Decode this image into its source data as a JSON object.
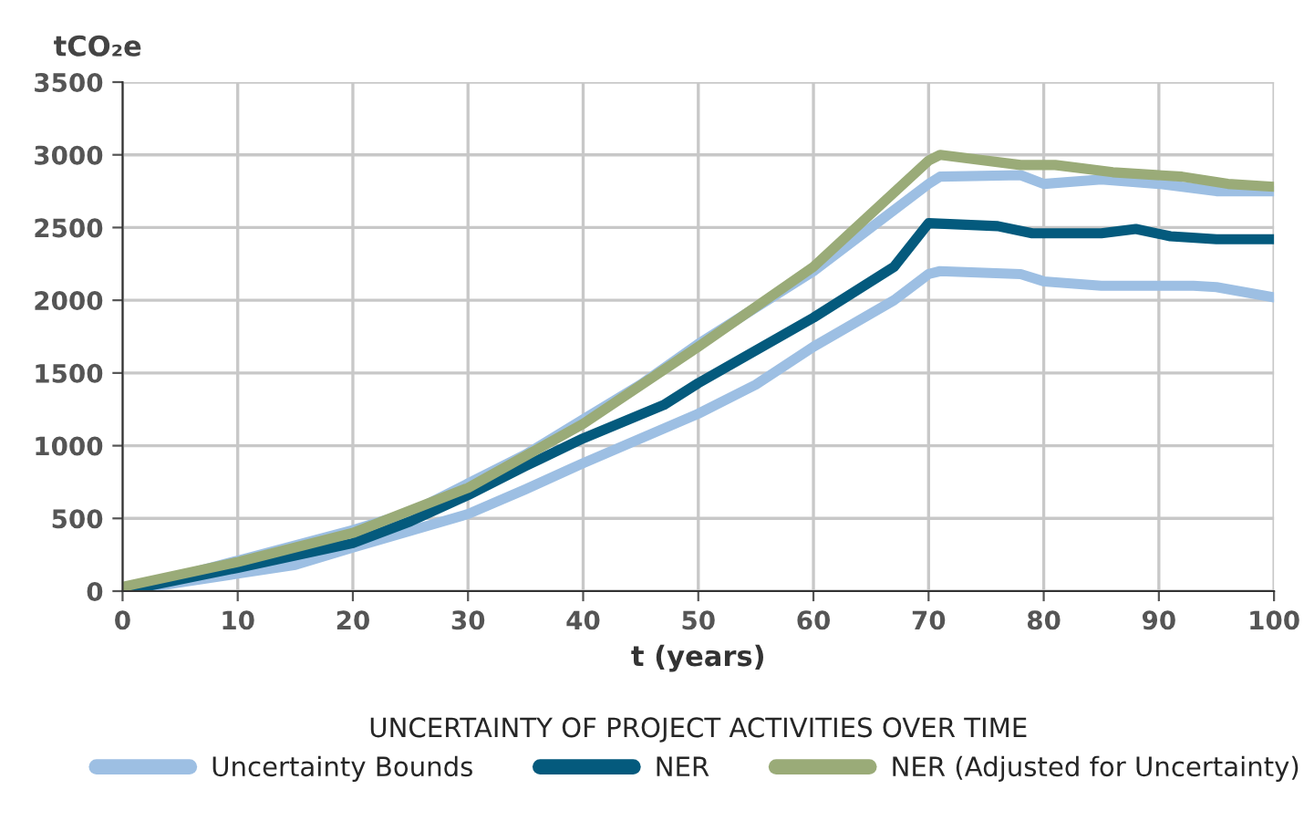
{
  "chart_data": {
    "type": "line",
    "xlabel": "t (years)",
    "ylabel": "tCO₂e",
    "legend_title": "UNCERTAINTY OF PROJECT ACTIVITIES OVER TIME",
    "legend": "bottom",
    "grid": true,
    "marker": "none",
    "line_style": "solid",
    "xlim": [
      0,
      100
    ],
    "xticks": [
      0,
      10,
      20,
      30,
      40,
      50,
      60,
      70,
      80,
      90,
      100
    ],
    "ylim": [
      0,
      3500
    ],
    "yticks": [
      0,
      500,
      1000,
      1500,
      2000,
      2500,
      3000,
      3500
    ],
    "series": [
      {
        "name": "Uncertainty Bounds",
        "color": "#9dbfe3",
        "x": [
          0,
          10,
          20,
          25,
          30,
          35,
          40,
          45,
          50,
          60,
          70,
          71,
          78,
          80,
          85,
          90,
          95,
          100
        ],
        "values": [
          0,
          210,
          420,
          540,
          740,
          940,
          1180,
          1420,
          1700,
          2200,
          2800,
          2850,
          2860,
          2800,
          2830,
          2800,
          2750,
          2750
        ]
      },
      {
        "color": "#9dbfe3",
        "x": [
          0,
          10,
          15,
          20,
          30,
          35,
          40,
          50,
          55,
          60,
          67,
          70,
          71,
          78,
          80,
          85,
          90,
          93,
          95,
          100
        ],
        "values": [
          0,
          120,
          180,
          300,
          530,
          700,
          880,
          1220,
          1420,
          1680,
          2000,
          2180,
          2200,
          2180,
          2130,
          2100,
          2100,
          2100,
          2090,
          2020
        ]
      },
      {
        "name": "NER",
        "color": "#045a7d",
        "x": [
          0,
          10,
          20,
          25,
          30,
          35,
          40,
          47,
          50,
          60,
          67,
          70,
          76,
          79,
          85,
          88,
          91,
          95,
          100
        ],
        "values": [
          0,
          160,
          330,
          480,
          660,
          860,
          1050,
          1280,
          1430,
          1880,
          2230,
          2530,
          2510,
          2460,
          2460,
          2490,
          2440,
          2420,
          2420
        ]
      },
      {
        "name": "NER (Adjusted for Uncertainty)",
        "color": "#9aab78",
        "x": [
          0,
          10,
          20,
          30,
          40,
          50,
          60,
          70,
          71,
          78,
          81,
          86,
          92,
          96,
          100
        ],
        "values": [
          30,
          200,
          400,
          710,
          1150,
          1680,
          2230,
          2960,
          3000,
          2930,
          2930,
          2880,
          2850,
          2800,
          2780
        ]
      }
    ]
  }
}
